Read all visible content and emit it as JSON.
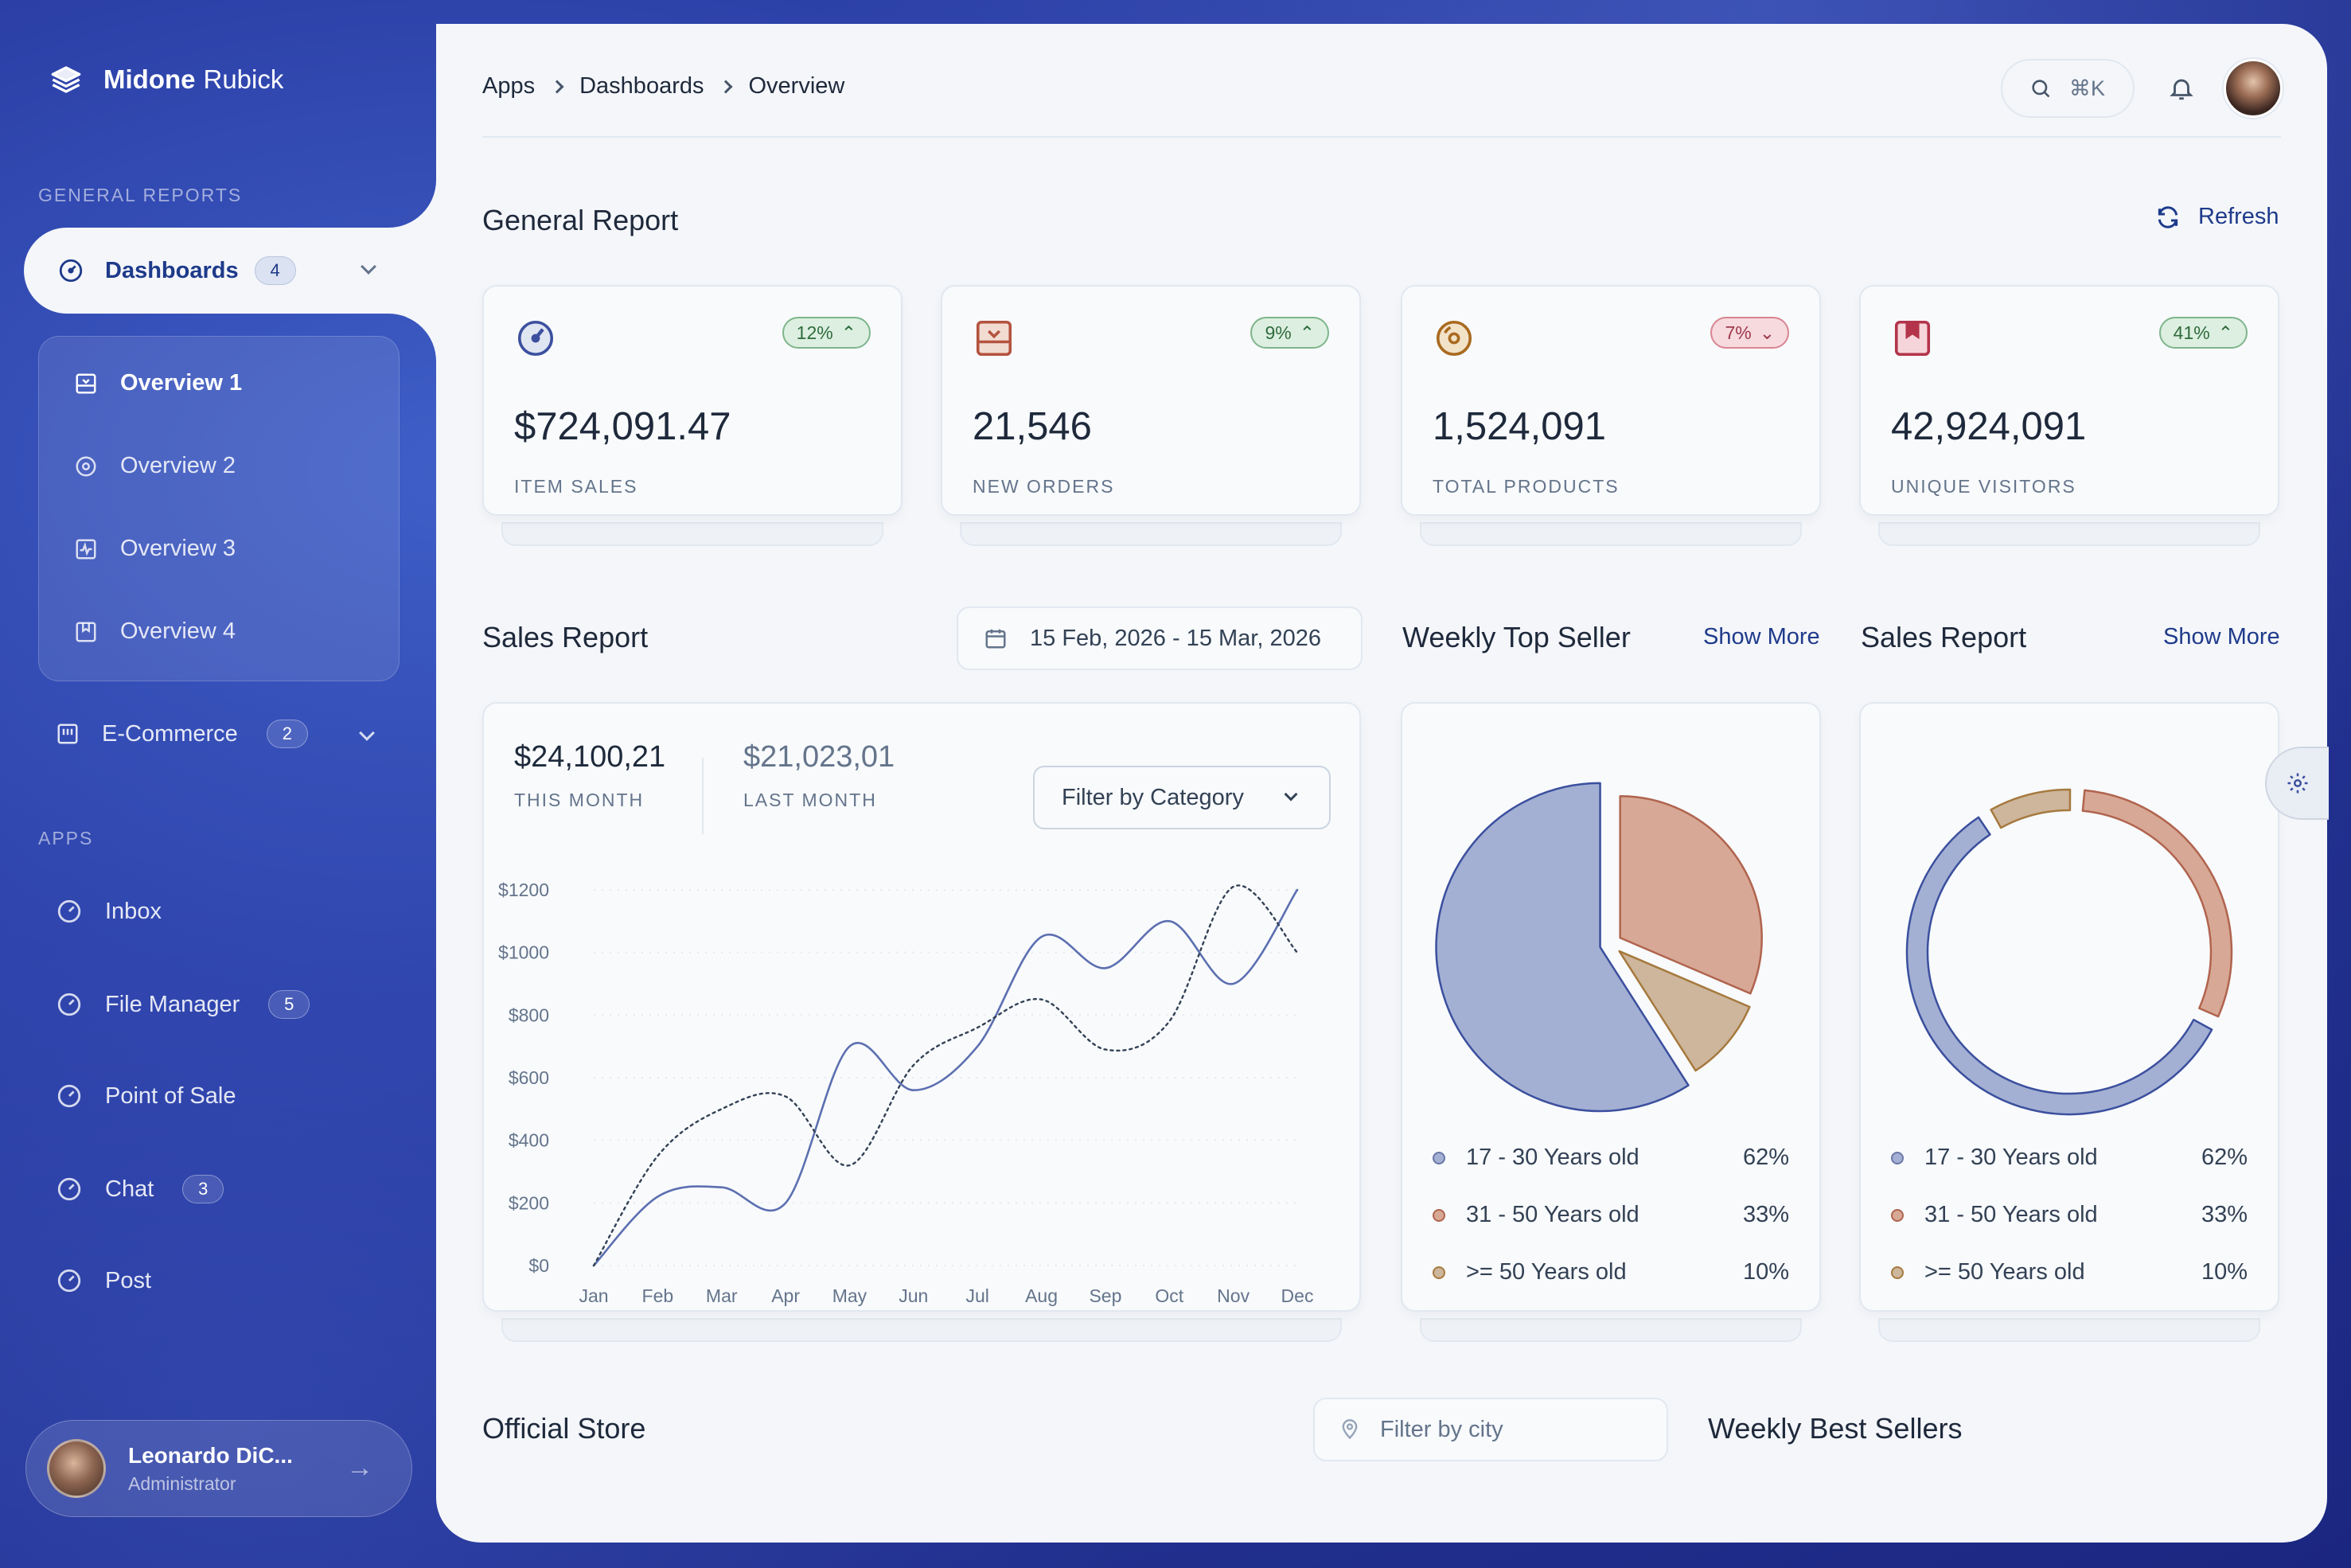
{
  "brand": {
    "name_strong": "Midone",
    "name_rest": "Rubick"
  },
  "sidebar": {
    "section_general": "GENERAL REPORTS",
    "dashboards": {
      "label": "Dashboards",
      "count": "4"
    },
    "sub_items": [
      "Overview 1",
      "Overview 2",
      "Overview 3",
      "Overview 4"
    ],
    "ecommerce": {
      "label": "E-Commerce",
      "count": "2"
    },
    "section_apps": "APPS",
    "apps": [
      {
        "label": "Inbox",
        "count": ""
      },
      {
        "label": "File Manager",
        "count": "5"
      },
      {
        "label": "Point of Sale",
        "count": ""
      },
      {
        "label": "Chat",
        "count": "3"
      },
      {
        "label": "Post",
        "count": ""
      }
    ],
    "user": {
      "name": "Leonardo DiC...",
      "role": "Administrator"
    }
  },
  "header": {
    "breadcrumb": [
      "Apps",
      "Dashboards",
      "Overview"
    ],
    "search_shortcut": "⌘K"
  },
  "general_report": {
    "title": "General Report",
    "refresh_label": "Refresh",
    "stats": [
      {
        "value": "$724,091.47",
        "label": "ITEM SALES",
        "trend": "12%",
        "direction": "up",
        "icon": "gauge-icon",
        "color": "#3b4f9e"
      },
      {
        "value": "21,546",
        "label": "NEW ORDERS",
        "trend": "9%",
        "direction": "up",
        "icon": "inbox-icon",
        "color": "#b4533f"
      },
      {
        "value": "1,524,091",
        "label": "TOTAL PRODUCTS",
        "trend": "7%",
        "direction": "down",
        "icon": "disc-icon",
        "color": "#a96a1e"
      },
      {
        "value": "42,924,091",
        "label": "UNIQUE VISITORS",
        "trend": "41%",
        "direction": "up",
        "icon": "bookmark-icon",
        "color": "#b3344b"
      }
    ]
  },
  "sales_report": {
    "title": "Sales Report",
    "date_range": "15 Feb, 2026 - 15 Mar, 2026",
    "this_month_value": "$24,100,21",
    "this_month_label": "THIS MONTH",
    "last_month_value": "$21,023,01",
    "last_month_label": "LAST MONTH",
    "filter_label": "Filter by Category"
  },
  "weekly_top_seller": {
    "title": "Weekly Top Seller",
    "show_more": "Show More",
    "legend": [
      {
        "label": "17 - 30 Years old",
        "pct": "62%",
        "color": "#a3b0d3"
      },
      {
        "label": "31 - 50 Years old",
        "pct": "33%",
        "color": "#d8a896"
      },
      {
        "label": ">= 50 Years old",
        "pct": "10%",
        "color": "#cdb69c"
      }
    ]
  },
  "sales_report_2": {
    "title": "Sales Report",
    "show_more": "Show More",
    "legend": [
      {
        "label": "17 - 30 Years old",
        "pct": "62%",
        "color": "#a3b0d3"
      },
      {
        "label": "31 - 50 Years old",
        "pct": "33%",
        "color": "#d8a896"
      },
      {
        "label": ">= 50 Years old",
        "pct": "10%",
        "color": "#cdb69c"
      }
    ]
  },
  "official_store": {
    "title": "Official Store",
    "city_placeholder": "Filter by city"
  },
  "weekly_best_sellers": {
    "title": "Weekly Best Sellers"
  },
  "chart_data": [
    {
      "type": "line",
      "categories": [
        "Jan",
        "Feb",
        "Mar",
        "Apr",
        "May",
        "Jun",
        "Jul",
        "Aug",
        "Sep",
        "Oct",
        "Nov",
        "Dec"
      ],
      "y_ticks": [
        "$0",
        "$200",
        "$400",
        "$600",
        "$800",
        "$1000",
        "$1200"
      ],
      "ylim": [
        0,
        1200
      ],
      "series": [
        {
          "values": [
            0,
            220,
            250,
            200,
            700,
            560,
            700,
            1050,
            950,
            1100,
            900,
            1200
          ],
          "style": "solid",
          "color": "#5c6fb0"
        },
        {
          "values": [
            0,
            350,
            500,
            540,
            320,
            640,
            760,
            850,
            690,
            780,
            1210,
            1000
          ],
          "style": "dotted",
          "color": "#334155"
        }
      ],
      "grid": true
    },
    {
      "type": "pie",
      "labels": [
        "17 - 30 Years old",
        "31 - 50 Years old",
        ">= 50 Years old"
      ],
      "values": [
        62,
        33,
        10
      ]
    },
    {
      "type": "pie",
      "style": "donut",
      "labels": [
        "17 - 30 Years old",
        "31 - 50 Years old",
        ">= 50 Years old"
      ],
      "values": [
        62,
        33,
        10
      ]
    }
  ]
}
